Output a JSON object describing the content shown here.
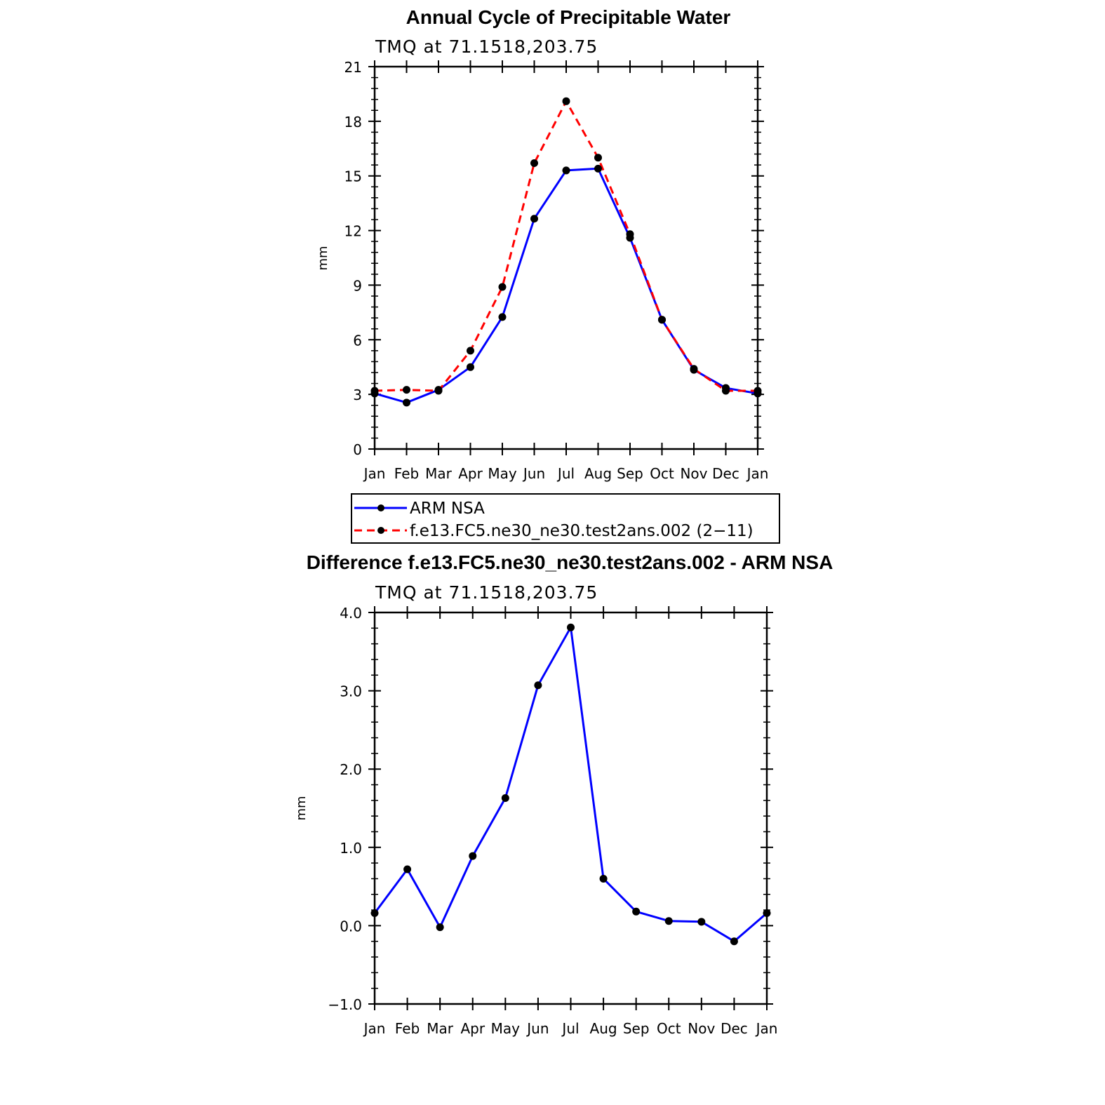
{
  "chart_data": [
    {
      "type": "line",
      "title": "Annual Cycle of Precipitable Water",
      "subtitle": "TMQ at 71.1518,203.75",
      "xlabel": "",
      "ylabel": "mm",
      "categories": [
        "Jan",
        "Feb",
        "Mar",
        "Apr",
        "May",
        "Jun",
        "Jul",
        "Aug",
        "Sep",
        "Oct",
        "Nov",
        "Dec",
        "Jan"
      ],
      "ylim": [
        0,
        21
      ],
      "yticks": [
        0,
        3,
        6,
        9,
        12,
        15,
        18,
        21
      ],
      "series": [
        {
          "name": "ARM NSA",
          "color": "#0000ff",
          "dash": "solid",
          "marker": "dot",
          "values": [
            3.05,
            2.55,
            3.25,
            4.5,
            7.25,
            12.65,
            15.3,
            15.4,
            11.6,
            7.1,
            4.35,
            3.35,
            3.05
          ]
        },
        {
          "name": "f.e13.FC5.ne30_ne30.test2ans.002 (2−11)",
          "color": "#ff0000",
          "dash": "dashed",
          "marker": "dot",
          "values": [
            3.2,
            3.25,
            3.2,
            5.4,
            8.9,
            15.7,
            19.1,
            16.0,
            11.8,
            7.1,
            4.4,
            3.2,
            3.2
          ]
        }
      ],
      "legend": "below"
    },
    {
      "type": "line",
      "title": "Difference f.e13.FC5.ne30_ne30.test2ans.002 - ARM NSA",
      "subtitle": "TMQ at 71.1518,203.75",
      "xlabel": "",
      "ylabel": "mm",
      "categories": [
        "Jan",
        "Feb",
        "Mar",
        "Apr",
        "May",
        "Jun",
        "Jul",
        "Aug",
        "Sep",
        "Oct",
        "Nov",
        "Dec",
        "Jan"
      ],
      "ylim": [
        -1.0,
        4.0
      ],
      "yticks": [
        "−1.0",
        "0.0",
        "1.0",
        "2.0",
        "3.0",
        "4.0"
      ],
      "series": [
        {
          "color": "#0000ff",
          "dash": "solid",
          "marker": "dot",
          "values": [
            0.16,
            0.72,
            -0.02,
            0.89,
            1.63,
            3.07,
            3.81,
            0.6,
            0.18,
            0.06,
            0.05,
            -0.2,
            0.16
          ]
        }
      ]
    }
  ]
}
